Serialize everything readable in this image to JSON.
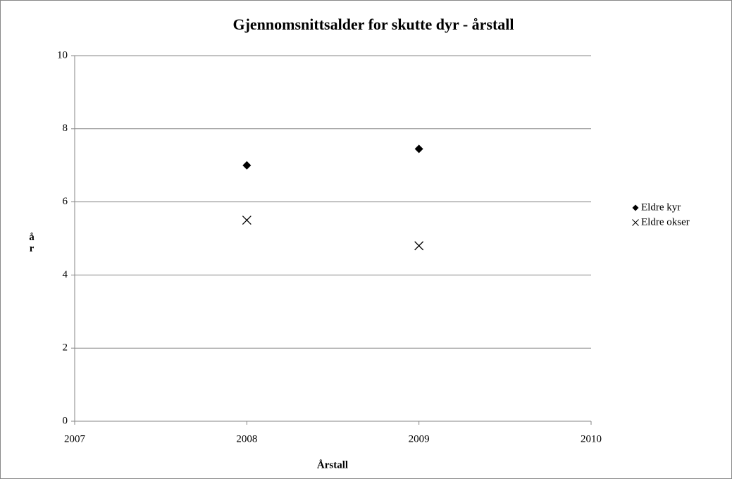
{
  "chart_data": {
    "type": "scatter",
    "title": "Gjennomsnittsalder for skutte dyr - årstall",
    "x_label": "Årstall",
    "y_label": "år",
    "x": [
      2008,
      2009
    ],
    "series": [
      {
        "name": "Eldre kyr",
        "color": "#000000",
        "marker": "diamond",
        "values": [
          7.0,
          7.45
        ]
      },
      {
        "name": "Eldre okser",
        "color": "#000000",
        "marker": "x",
        "values": [
          5.5,
          4.8
        ]
      }
    ],
    "xlim": [
      2007,
      2010
    ],
    "xticks": [
      2007,
      2008,
      2009,
      2010
    ],
    "ylim": [
      0,
      10
    ],
    "yticks": [
      0,
      2,
      4,
      6,
      8,
      10
    ],
    "grid": true,
    "legend": "right"
  }
}
